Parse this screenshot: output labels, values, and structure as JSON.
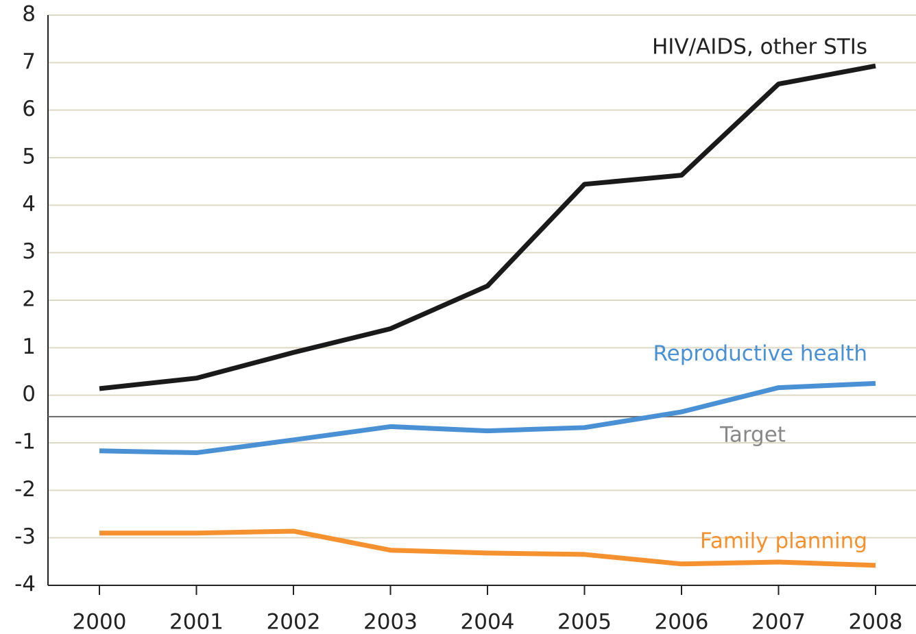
{
  "chart_data": {
    "type": "line",
    "categories": [
      "2000",
      "2001",
      "2002",
      "2003",
      "2004",
      "2005",
      "2006",
      "2007",
      "2008"
    ],
    "series": [
      {
        "name": "HIV/AIDS, other STIs",
        "color": "#1a1a1a",
        "values": [
          0.14,
          0.36,
          0.9,
          1.4,
          2.3,
          4.44,
          4.63,
          6.55,
          6.93
        ]
      },
      {
        "name": "Reproductive health",
        "color": "#4a90d4",
        "values": [
          -1.17,
          -1.21,
          -0.94,
          -0.66,
          -0.75,
          -0.68,
          -0.35,
          0.16,
          0.25
        ]
      },
      {
        "name": "Family planning",
        "color": "#f5922f",
        "values": [
          -2.9,
          -2.9,
          -2.86,
          -3.26,
          -3.32,
          -3.35,
          -3.55,
          -3.51,
          -3.58
        ]
      }
    ],
    "target": {
      "label": "Target",
      "value": -0.45
    },
    "ylim": [
      -4,
      8
    ],
    "yticks": [
      -4,
      -3,
      -2,
      -1,
      0,
      1,
      2,
      3,
      4,
      5,
      6,
      7,
      8
    ],
    "grid": true
  }
}
